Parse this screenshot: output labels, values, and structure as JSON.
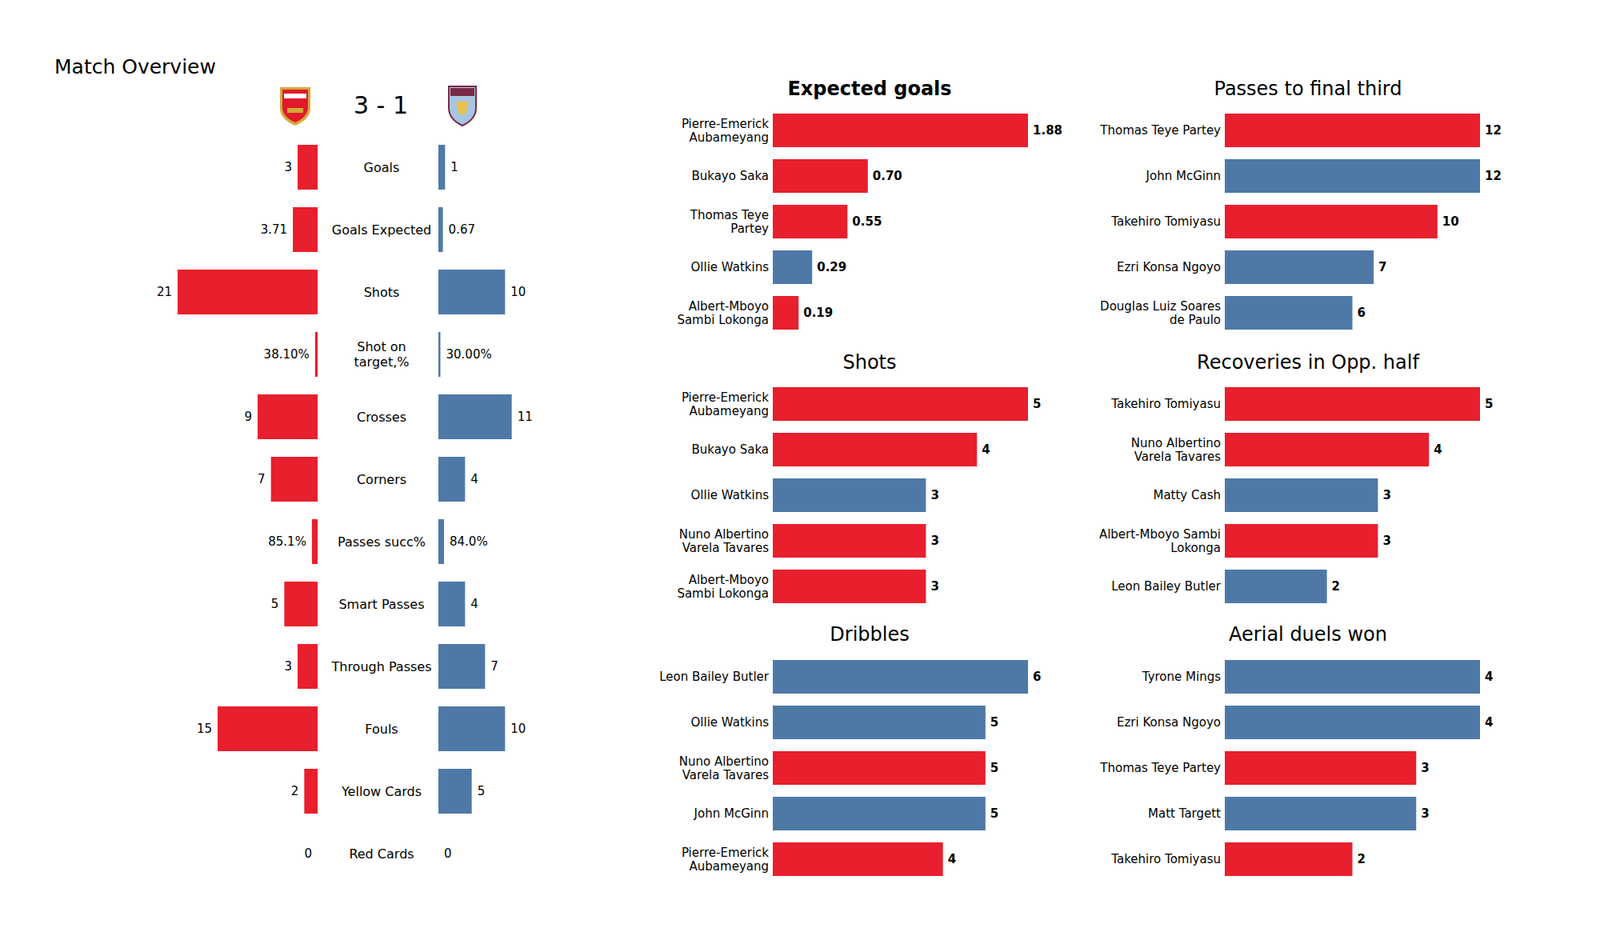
{
  "chart_data": [
    {
      "type": "bar",
      "orientation": "horizontal",
      "title": "Match Overview",
      "subtitle": "3 - 1",
      "categories": [
        "Goals",
        "Goals Expected",
        "Shots",
        "Shot on\ntarget,%",
        "Crosses",
        "Corners",
        "Passes succ%",
        "Smart Passes",
        "Through Passes",
        "Fouls",
        "Yellow Cards",
        "Red Cards"
      ],
      "series": [
        {
          "color": "#e81f2d",
          "values": [
            3,
            3.71,
            21,
            0.381,
            9,
            7,
            0.851,
            5,
            3,
            15,
            2,
            0
          ],
          "value_labels": [
            "3",
            "3.71",
            "21",
            "38.10%",
            "9",
            "7",
            "85.1%",
            "5",
            "3",
            "15",
            "2",
            "0"
          ]
        },
        {
          "color": "#4e79a7",
          "values": [
            1,
            0.67,
            10,
            0.3,
            11,
            4,
            0.84,
            4,
            7,
            10,
            5,
            0
          ],
          "value_labels": [
            "1",
            "0.67",
            "10",
            "30.00%",
            "11",
            "4",
            "84.0%",
            "4",
            "7",
            "10",
            "5",
            "0"
          ]
        }
      ],
      "xlim": [
        0,
        21
      ],
      "data_labels": true,
      "tick_labels": "y"
    },
    {
      "type": "bar",
      "orientation": "horizontal",
      "title": "Expected goals",
      "categories": [
        "Pierre-Emerick\nAubameyang",
        "Bukayo Saka",
        "Thomas Teye\nPartey",
        "Ollie Watkins",
        "Albert-Mboyo\nSambi Lokonga"
      ],
      "values": [
        1.88,
        0.7,
        0.55,
        0.29,
        0.19
      ],
      "value_labels": [
        "1.88",
        "0.70",
        "0.55",
        "0.29",
        "0.19"
      ],
      "colors": [
        "#e81f2d",
        "#e81f2d",
        "#e81f2d",
        "#4e79a7",
        "#e81f2d"
      ],
      "xlim": [
        0,
        1.88
      ],
      "data_labels": true,
      "tick_labels": "y"
    },
    {
      "type": "bar",
      "orientation": "horizontal",
      "title": "Shots",
      "categories": [
        "Pierre-Emerick\nAubameyang",
        "Bukayo Saka",
        "Ollie Watkins",
        "Nuno Albertino\nVarela Tavares",
        "Albert-Mboyo\nSambi Lokonga"
      ],
      "values": [
        5,
        4,
        3,
        3,
        3
      ],
      "colors": [
        "#e81f2d",
        "#e81f2d",
        "#4e79a7",
        "#e81f2d",
        "#e81f2d"
      ],
      "xlim": [
        0,
        5
      ],
      "data_labels": true,
      "tick_labels": "y"
    },
    {
      "type": "bar",
      "orientation": "horizontal",
      "title": "Dribbles",
      "categories": [
        "Leon Bailey Butler",
        "Ollie Watkins",
        "Nuno Albertino\nVarela Tavares",
        "John McGinn",
        "Pierre-Emerick\nAubameyang"
      ],
      "values": [
        6,
        5,
        5,
        5,
        4
      ],
      "colors": [
        "#4e79a7",
        "#4e79a7",
        "#e81f2d",
        "#4e79a7",
        "#e81f2d"
      ],
      "xlim": [
        0,
        6
      ],
      "data_labels": true,
      "tick_labels": "y"
    },
    {
      "type": "bar",
      "orientation": "horizontal",
      "title": "Passes to final third",
      "categories": [
        "Thomas Teye Partey",
        "John McGinn",
        "Takehiro Tomiyasu",
        "Ezri Konsa Ngoyo",
        "Douglas Luiz Soares\nde Paulo"
      ],
      "values": [
        12,
        12,
        10,
        7,
        6
      ],
      "colors": [
        "#e81f2d",
        "#4e79a7",
        "#e81f2d",
        "#4e79a7",
        "#4e79a7"
      ],
      "xlim": [
        0,
        12
      ],
      "data_labels": true,
      "tick_labels": "y"
    },
    {
      "type": "bar",
      "orientation": "horizontal",
      "title": "Recoveries in Opp. half",
      "categories": [
        "Takehiro Tomiyasu",
        "Nuno Albertino\nVarela Tavares",
        "Matty Cash",
        "Albert-Mboyo Sambi\nLokonga",
        "Leon Bailey Butler"
      ],
      "values": [
        5,
        4,
        3,
        3,
        2
      ],
      "colors": [
        "#e81f2d",
        "#e81f2d",
        "#4e79a7",
        "#e81f2d",
        "#4e79a7"
      ],
      "xlim": [
        0,
        5
      ],
      "data_labels": true,
      "tick_labels": "y"
    },
    {
      "type": "bar",
      "orientation": "horizontal",
      "title": "Aerial duels won",
      "categories": [
        "Tyrone Mings",
        "Ezri Konsa Ngoyo",
        "Thomas Teye Partey",
        "Matt Targett",
        "Takehiro Tomiyasu"
      ],
      "values": [
        4,
        4,
        3,
        3,
        2
      ],
      "colors": [
        "#4e79a7",
        "#4e79a7",
        "#e81f2d",
        "#4e79a7",
        "#e81f2d"
      ],
      "xlim": [
        0,
        4
      ],
      "data_labels": true,
      "tick_labels": "y"
    }
  ]
}
